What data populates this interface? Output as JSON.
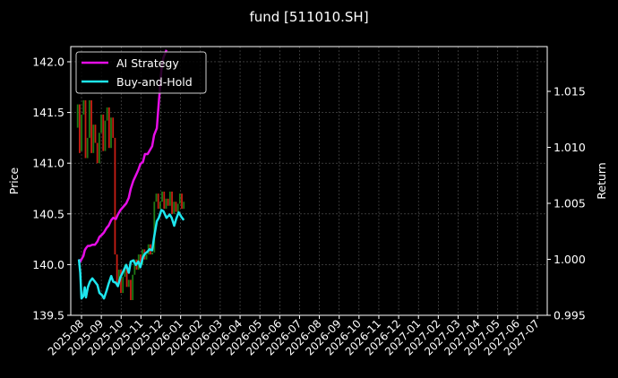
{
  "chart_data": {
    "type": "line",
    "title": "fund [511010.SH]",
    "left_axis": {
      "label": "Price",
      "ylim": [
        139.5,
        142.15
      ],
      "ticks": [
        139.5,
        140.0,
        140.5,
        141.0,
        141.5,
        142.0
      ]
    },
    "right_axis": {
      "label": "Return",
      "ylim": [
        0.995,
        1.019
      ],
      "ticks": [
        0.995,
        1.0,
        1.005,
        1.01,
        1.015
      ]
    },
    "x_axis": {
      "ticks": [
        "2025-08",
        "2025-09",
        "2025-10",
        "2025-11",
        "2025-12",
        "2026-01",
        "2026-02",
        "2026-03",
        "2026-04",
        "2026-05",
        "2026-06",
        "2026-07",
        "2026-08",
        "2026-09",
        "2026-10",
        "2026-11",
        "2026-12",
        "2027-01",
        "2027-02",
        "2027-03",
        "2027-04",
        "2027-05",
        "2027-06",
        "2027-07"
      ]
    },
    "grid": true,
    "legend": {
      "placement": "top-left",
      "entries": [
        {
          "name": "AI Strategy",
          "color": "#e60ee6"
        },
        {
          "name": "Buy-and-Hold",
          "color": "#1ee6ee"
        }
      ]
    },
    "price_colors": {
      "up": "#1f7a14",
      "down": "#c81e14"
    },
    "price_series": [
      [
        141.35,
        141.58
      ],
      [
        141.58,
        141.1
      ],
      [
        141.12,
        141.48
      ],
      [
        141.48,
        141.62
      ],
      [
        141.62,
        141.05
      ],
      [
        141.05,
        141.25
      ],
      [
        141.25,
        141.62
      ],
      [
        141.62,
        141.1
      ],
      [
        141.1,
        141.38
      ],
      [
        141.38,
        141.2
      ],
      [
        141.2,
        141.0
      ],
      [
        141.0,
        141.3
      ],
      [
        141.3,
        141.48
      ],
      [
        141.48,
        141.12
      ],
      [
        141.12,
        141.42
      ],
      [
        141.42,
        141.55
      ],
      [
        141.55,
        141.15
      ],
      [
        141.15,
        141.45
      ],
      [
        141.45,
        141.25
      ],
      [
        141.25,
        140.1
      ],
      [
        140.1,
        139.82
      ],
      [
        139.82,
        139.95
      ],
      [
        139.95,
        139.72
      ],
      [
        139.72,
        139.88
      ],
      [
        139.88,
        140.0
      ],
      [
        140.0,
        139.78
      ],
      [
        139.78,
        139.85
      ],
      [
        139.85,
        139.65
      ],
      [
        139.65,
        139.9
      ],
      [
        139.9,
        140.05
      ],
      [
        140.05,
        139.95
      ],
      [
        139.95,
        140.1
      ],
      [
        140.1,
        140.0
      ],
      [
        140.0,
        140.15
      ],
      [
        140.15,
        140.05
      ],
      [
        140.05,
        140.1
      ],
      [
        140.1,
        140.2
      ],
      [
        140.2,
        140.1
      ],
      [
        140.1,
        140.12
      ],
      [
        140.12,
        140.62
      ],
      [
        140.62,
        140.7
      ],
      [
        140.7,
        140.55
      ],
      [
        140.55,
        140.62
      ],
      [
        140.62,
        140.72
      ],
      [
        140.72,
        140.55
      ],
      [
        140.55,
        140.65
      ],
      [
        140.65,
        140.58
      ],
      [
        140.58,
        140.72
      ],
      [
        140.72,
        140.5
      ],
      [
        140.5,
        140.62
      ],
      [
        140.62,
        140.52
      ],
      [
        140.52,
        140.6
      ],
      [
        140.6,
        140.7
      ],
      [
        140.7,
        140.55
      ],
      [
        140.55,
        140.62
      ]
    ],
    "series": [
      {
        "name": "AI Strategy",
        "color": "#e60ee6",
        "x": [
          "2025-07-28",
          "2025-07-30",
          "2025-08-01",
          "2025-08-04",
          "2025-08-06",
          "2025-08-08",
          "2025-08-11",
          "2025-08-14",
          "2025-08-18",
          "2025-08-22",
          "2025-08-26",
          "2025-08-29",
          "2025-09-02",
          "2025-09-05",
          "2025-09-09",
          "2025-09-12",
          "2025-09-16",
          "2025-09-19",
          "2025-09-23",
          "2025-09-26",
          "2025-09-30",
          "2025-10-09",
          "2025-10-13",
          "2025-10-16",
          "2025-10-20",
          "2025-10-24",
          "2025-10-28",
          "2025-10-31",
          "2025-11-04",
          "2025-11-07",
          "2025-11-11",
          "2025-11-14",
          "2025-11-18",
          "2025-11-21",
          "2025-11-25",
          "2025-11-28",
          "2025-12-02",
          "2025-12-05",
          "2025-12-10"
        ],
        "y": [
          1.0,
          0.9998,
          1.0,
          1.0003,
          1.0008,
          1.001,
          1.0012,
          1.0012,
          1.0013,
          1.0013,
          1.0016,
          1.002,
          1.0022,
          1.0024,
          1.0028,
          1.003,
          1.0035,
          1.0037,
          1.0036,
          1.004,
          1.0044,
          1.005,
          1.0055,
          1.0063,
          1.007,
          1.0075,
          1.008,
          1.0085,
          1.0087,
          1.0094,
          1.0094,
          1.0097,
          1.0101,
          1.0111,
          1.0117,
          1.014,
          1.0169,
          1.018,
          1.0187
        ]
      },
      {
        "name": "Buy-and-Hold",
        "color": "#1ee6ee",
        "x": [
          "2025-07-28",
          "2025-07-30",
          "2025-08-01",
          "2025-08-04",
          "2025-08-06",
          "2025-08-08",
          "2025-08-11",
          "2025-08-14",
          "2025-08-18",
          "2025-08-22",
          "2025-08-26",
          "2025-08-29",
          "2025-09-02",
          "2025-09-05",
          "2025-09-09",
          "2025-09-12",
          "2025-09-16",
          "2025-09-19",
          "2025-09-23",
          "2025-09-26",
          "2025-09-30",
          "2025-10-09",
          "2025-10-13",
          "2025-10-16",
          "2025-10-20",
          "2025-10-24",
          "2025-10-28",
          "2025-10-31",
          "2025-11-04",
          "2025-11-07",
          "2025-11-11",
          "2025-11-14",
          "2025-11-18",
          "2025-11-21",
          "2025-11-25",
          "2025-11-28",
          "2025-12-02",
          "2025-12-05",
          "2025-12-10",
          "2025-12-15",
          "2025-12-18",
          "2025-12-22",
          "2025-12-25",
          "2025-12-29",
          "2026-01-02",
          "2026-01-06"
        ],
        "y": [
          1.0,
          0.9988,
          0.9965,
          0.9967,
          0.9975,
          0.9966,
          0.9975,
          0.998,
          0.9983,
          0.998,
          0.9977,
          0.997,
          0.9968,
          0.9965,
          0.9972,
          0.9978,
          0.9985,
          0.998,
          0.9979,
          0.9976,
          0.9984,
          0.9995,
          0.9988,
          0.9998,
          0.9999,
          0.9995,
          0.9998,
          0.9993,
          1.0002,
          1.0005,
          1.0007,
          1.0009,
          1.0008,
          1.002,
          1.0034,
          1.0037,
          1.0044,
          1.0043,
          1.0037,
          1.004,
          1.0037,
          1.003,
          1.0036,
          1.0042,
          1.0038,
          1.0035
        ]
      }
    ]
  }
}
